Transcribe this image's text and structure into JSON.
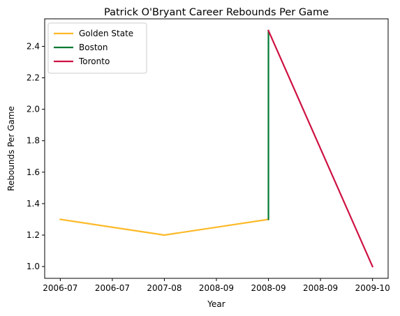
{
  "chart_data": {
    "type": "line",
    "title": "Patrick O'Bryant Career Rebounds Per Game",
    "xlabel": "Year",
    "ylabel": "Rebounds Per Game",
    "x_tick_labels": [
      "2006-07",
      "2006-07",
      "2007-08",
      "2008-09",
      "2008-09",
      "2008-09",
      "2009-10"
    ],
    "x_tick_positions": [
      0,
      0.5,
      1,
      1.5,
      2,
      2.5,
      3
    ],
    "xlim": [
      -0.15,
      3.15
    ],
    "y_ticks": [
      1.0,
      1.2,
      1.4,
      1.6,
      1.8,
      2.0,
      2.2,
      2.4
    ],
    "y_tick_labels": [
      "1.0",
      "1.2",
      "1.4",
      "1.6",
      "1.8",
      "2.0",
      "2.2",
      "2.4"
    ],
    "ylim": [
      0.925,
      2.575
    ],
    "grid": false,
    "legend_position": "upper left",
    "series": [
      {
        "name": "Golden State",
        "color": "#FDB927",
        "x": [
          0,
          1,
          2
        ],
        "y": [
          1.3,
          1.2,
          1.3
        ]
      },
      {
        "name": "Boston",
        "color": "#007A33",
        "x": [
          2,
          2
        ],
        "y": [
          1.3,
          2.5
        ]
      },
      {
        "name": "Toronto",
        "color": "#CE1141",
        "x": [
          2,
          3
        ],
        "y": [
          2.5,
          1.0
        ]
      }
    ]
  }
}
